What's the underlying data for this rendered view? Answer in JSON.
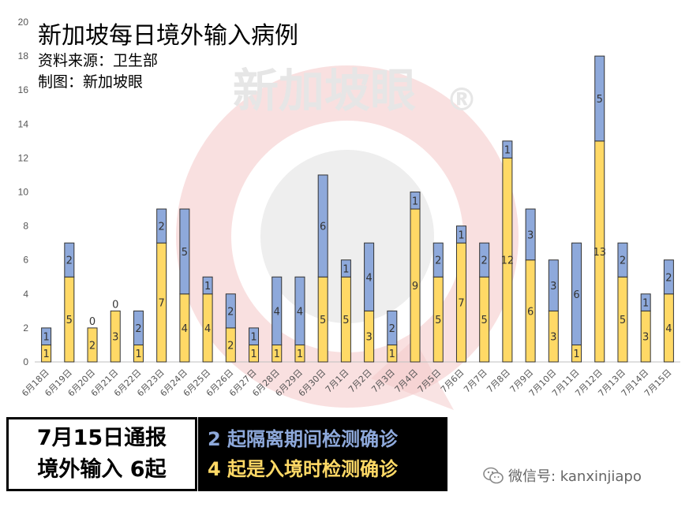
{
  "header": {
    "title": "新加坡每日境外输入病例",
    "source": "资料来源：卫生部",
    "credit": "制图：新加坡眼"
  },
  "watermark": {
    "text": "新加坡眼",
    "symbol": "®"
  },
  "colors": {
    "yellow": "#FFD966",
    "blue": "#8EA9DB",
    "bar_stroke": "#333333",
    "gridline": "#dddddd",
    "wm_red": "#f4c7c7",
    "wm_gray": "#e2e2e2",
    "box_blue_text": "#8EA9DB",
    "box_yellow_text": "#FFD966"
  },
  "summary": {
    "line1": "7月15日通报",
    "line2": "境外输入 6起",
    "blue_line": "2 起隔离期间检测确诊",
    "yellow_line": "4 起是入境时检测确诊"
  },
  "footer": {
    "wechat_label": "微信号: kanxinjiapo",
    "icon": "wechat-icon"
  },
  "chart_data": {
    "type": "bar",
    "stacked": true,
    "categories": [
      "6月18日",
      "6月19日",
      "6月20日",
      "6月21日",
      "6月22日",
      "6月23日",
      "6月24日",
      "6月25日",
      "6月26日",
      "6月27日",
      "6月28日",
      "6月29日",
      "6月30日",
      "7月1日",
      "7月2日",
      "7月3日",
      "7月4日",
      "7月5日",
      "7月6日",
      "7月7日",
      "7月8日",
      "7月9日",
      "7月10日",
      "7月11日",
      "7月12日",
      "7月13日",
      "7月14日",
      "7月15日"
    ],
    "series": [
      {
        "color": "#FFD966",
        "values": [
          1,
          5,
          2,
          3,
          1,
          7,
          4,
          4,
          2,
          1,
          1,
          1,
          5,
          5,
          3,
          1,
          9,
          5,
          7,
          5,
          12,
          6,
          3,
          1,
          13,
          5,
          3,
          4
        ]
      },
      {
        "color": "#8EA9DB",
        "values": [
          1,
          2,
          0,
          0,
          2,
          2,
          5,
          1,
          2,
          1,
          4,
          4,
          6,
          1,
          4,
          2,
          1,
          2,
          1,
          2,
          1,
          3,
          3,
          6,
          5,
          2,
          1,
          2
        ]
      }
    ],
    "ylim": [
      0,
      20
    ],
    "yticks": [
      0,
      2,
      4,
      6,
      8,
      10,
      12,
      14,
      16,
      18,
      20
    ],
    "grid": false,
    "legend": "none"
  }
}
